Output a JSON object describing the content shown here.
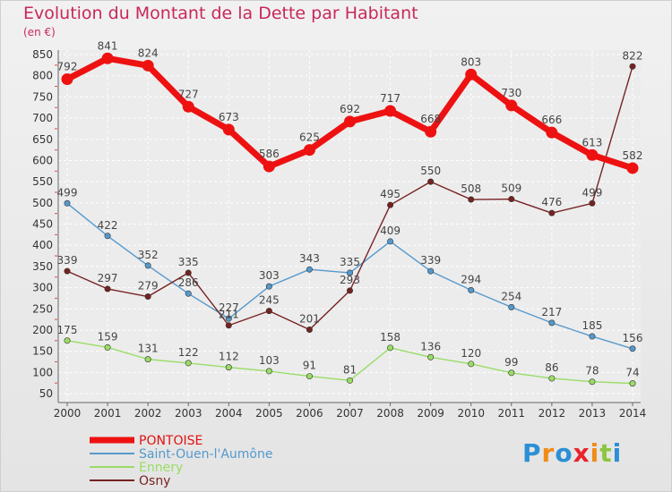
{
  "chart_data": {
    "type": "line",
    "title": "Evolution du Montant de la Dette par Habitant",
    "ylabel": "(en €)",
    "categories": [
      "2000",
      "2001",
      "2002",
      "2003",
      "2004",
      "2005",
      "2006",
      "2007",
      "2008",
      "2009",
      "2010",
      "2011",
      "2012",
      "2013",
      "2014"
    ],
    "yticks": [
      50,
      100,
      150,
      200,
      250,
      300,
      350,
      400,
      450,
      500,
      550,
      600,
      650,
      700,
      750,
      800,
      850
    ],
    "ylim": [
      50,
      870
    ],
    "grid": true,
    "legend_position": "bottom-left",
    "series": [
      {
        "name": "PONTOISE",
        "color": "#ee1111",
        "values": [
          792,
          841,
          824,
          727,
          673,
          586,
          625,
          692,
          717,
          668,
          803,
          730,
          666,
          613,
          582
        ]
      },
      {
        "name": "Saint-Ouen-l'Aumône",
        "color": "#5599cc",
        "values": [
          499,
          422,
          352,
          286,
          227,
          303,
          343,
          335,
          409,
          339,
          294,
          254,
          217,
          185,
          156
        ]
      },
      {
        "name": "Ennery",
        "color": "#99dd66",
        "values": [
          175,
          159,
          131,
          122,
          112,
          103,
          91,
          81,
          158,
          136,
          120,
          99,
          86,
          78,
          74
        ]
      },
      {
        "name": "Osny",
        "color": "#772222",
        "values": [
          339,
          297,
          279,
          335,
          211,
          245,
          201,
          293,
          495,
          550,
          508,
          509,
          476,
          499,
          822
        ]
      }
    ]
  },
  "logo": {
    "text": "Proxiti",
    "letters": [
      "P",
      "r",
      "o",
      "x",
      "i",
      "t",
      "i"
    ],
    "colors": [
      "#2c8fd6",
      "#f08c1a",
      "#2c8fd6",
      "#e8242c",
      "#f08c1a",
      "#8cc63f",
      "#2c8fd6"
    ]
  }
}
